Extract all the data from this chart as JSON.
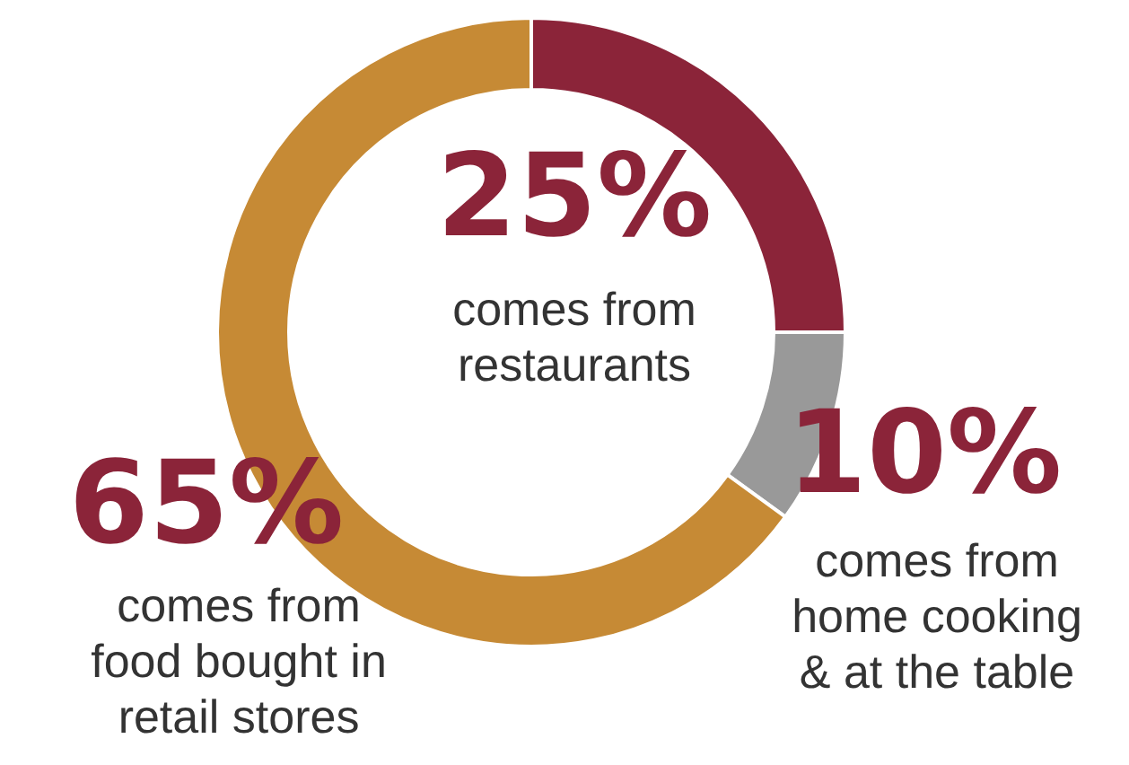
{
  "chart_data": {
    "type": "donut",
    "categories": [
      "comes from\nrestaurants",
      "comes from\nhome cooking\n& at the table",
      "comes from\nfood bought in\nretail stores"
    ],
    "values": [
      25,
      10,
      65
    ],
    "colors": [
      "#8b2439",
      "#999999",
      "#c68a35"
    ],
    "value_labels": [
      "25%",
      "10%",
      "65%"
    ]
  }
}
